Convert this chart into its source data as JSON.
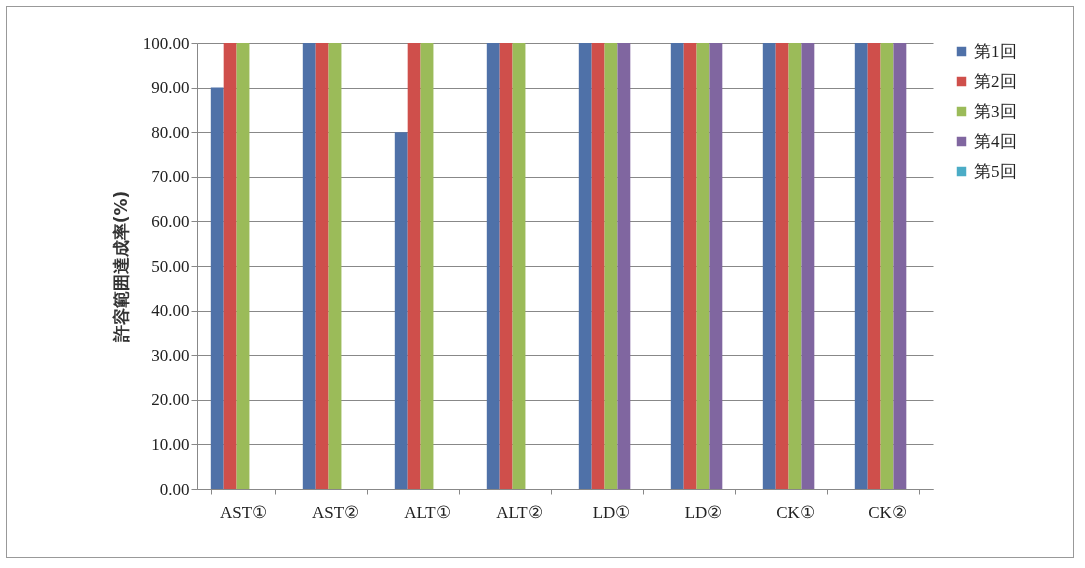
{
  "chart_data": {
    "type": "bar",
    "ylabel": "許容範囲達成率(%)",
    "categories": [
      "AST①",
      "AST②",
      "ALT①",
      "ALT②",
      "LD①",
      "LD②",
      "CK①",
      "CK②"
    ],
    "series": [
      {
        "name": "第1回",
        "color": "#4f71a8",
        "values": [
          90,
          100,
          80,
          100,
          100,
          100,
          100,
          100
        ]
      },
      {
        "name": "第2回",
        "color": "#cf4f4b",
        "values": [
          100,
          100,
          100,
          100,
          100,
          100,
          100,
          100
        ]
      },
      {
        "name": "第3回",
        "color": "#9bbb59",
        "values": [
          100,
          100,
          100,
          100,
          100,
          100,
          100,
          100
        ]
      },
      {
        "name": "第4回",
        "color": "#8066a0",
        "values": [
          null,
          null,
          null,
          null,
          100,
          100,
          100,
          100
        ]
      },
      {
        "name": "第5回",
        "color": "#4bacc6",
        "values": [
          null,
          null,
          null,
          null,
          null,
          null,
          null,
          null
        ]
      }
    ],
    "ylim": [
      0,
      100
    ],
    "yticks": [
      {
        "value": 0,
        "label": "0.00"
      },
      {
        "value": 10,
        "label": "10.00"
      },
      {
        "value": 20,
        "label": "20.00"
      },
      {
        "value": 30,
        "label": "30.00"
      },
      {
        "value": 40,
        "label": "40.00"
      },
      {
        "value": 50,
        "label": "50.00"
      },
      {
        "value": 60,
        "label": "60.00"
      },
      {
        "value": 70,
        "label": "70.00"
      },
      {
        "value": 80,
        "label": "80.00"
      },
      {
        "value": 90,
        "label": "90.00"
      },
      {
        "value": 100,
        "label": "100.00"
      }
    ],
    "grid": "y",
    "legend": "right"
  }
}
